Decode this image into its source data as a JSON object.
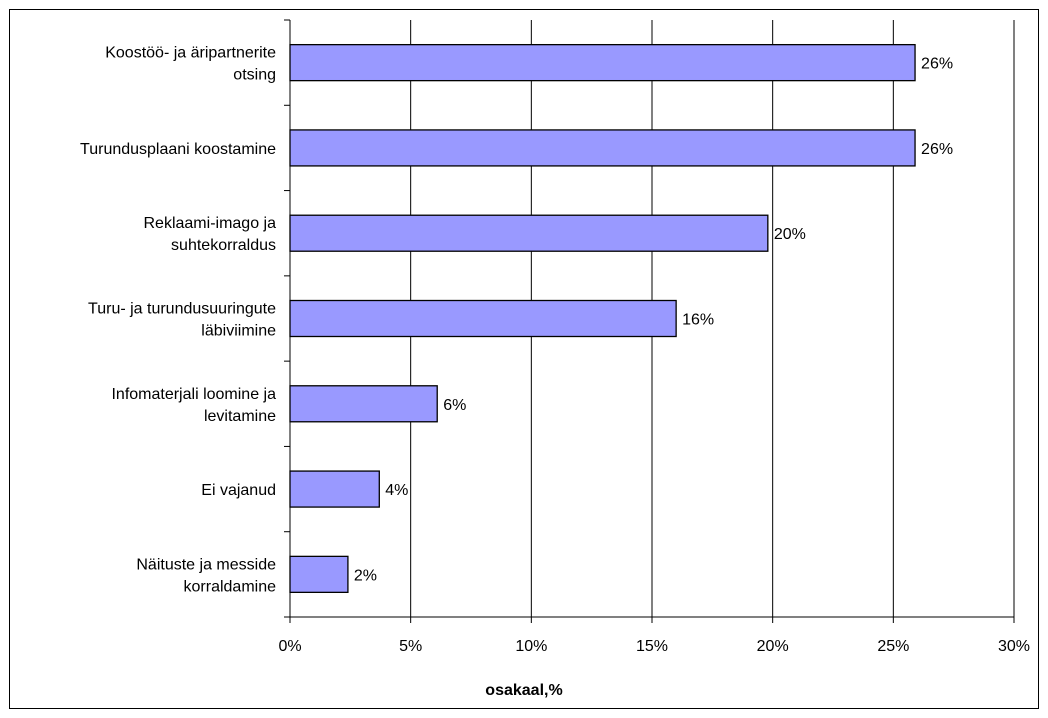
{
  "chart_data": {
    "type": "bar",
    "orientation": "horizontal",
    "title": "",
    "xlabel": "osakaal,%",
    "ylabel": "",
    "xlim": [
      0,
      30
    ],
    "x_ticks": [
      0,
      5,
      10,
      15,
      20,
      25,
      30
    ],
    "x_tick_labels": [
      "0%",
      "5%",
      "10%",
      "15%",
      "20%",
      "25%",
      "30%"
    ],
    "grid": "vertical",
    "legend": "none",
    "bar_color": "#9999ff",
    "categories": [
      [
        "Koostöö- ja äripartnerite",
        "otsing"
      ],
      [
        "Turundusplaani koostamine"
      ],
      [
        "Reklaami-imago ja",
        "suhtekorraldus"
      ],
      [
        "Turu- ja turundusuuringute",
        "läbiviimine"
      ],
      [
        "Infomaterjali loomine ja",
        "levitamine"
      ],
      [
        "Ei vajanud"
      ],
      [
        "Näituste ja messide",
        "korraldamine"
      ]
    ],
    "values": [
      25.9,
      25.9,
      19.8,
      16.0,
      6.1,
      3.7,
      2.4
    ],
    "data_labels": [
      "26%",
      "26%",
      "20%",
      "16%",
      "6%",
      "4%",
      "2%"
    ]
  }
}
